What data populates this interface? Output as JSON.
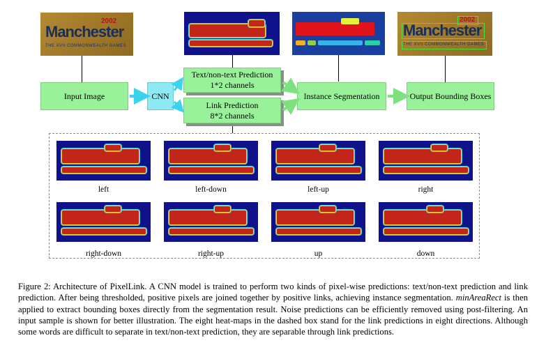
{
  "photo_text": {
    "year": "2002",
    "city": "Manchester",
    "subtitle": "THE XVII COMMONWEALTH GAMES"
  },
  "boxes": {
    "input_image": "Input Image",
    "cnn": "CNN",
    "text_pred": {
      "line1": "Text/non-text Prediction",
      "line2": "1*2 channels"
    },
    "link_pred": {
      "line1": "Link Prediction",
      "line2": "8*2 channels"
    },
    "instance_seg": "Instance Segmentation",
    "output_boxes": "Output Bounding Boxes"
  },
  "heatmaps": [
    {
      "label": "left"
    },
    {
      "label": "left-down"
    },
    {
      "label": "left-up"
    },
    {
      "label": "right"
    },
    {
      "label": "right-down"
    },
    {
      "label": "right-up"
    },
    {
      "label": "up"
    },
    {
      "label": "down"
    }
  ],
  "caption": {
    "prefix": "Figure 2: Architecture of PixelLink. A CNN model is trained to perform two kinds of pixel-wise predictions: text/non-text prediction and link prediction. After being thresholded, positive pixels are joined together by positive links, achieving instance segmentation. ",
    "emph": "minAreaRect",
    "suffix": " is then applied to extract bounding boxes directly from the segmentation result. Noise predictions can be efficiently removed using post-filtering. An input sample is shown for better illustration. The eight heat-maps in the dashed box stand for the link predictions in eight directions. Although some words are difficult to separate in text/non-text prediction, they are separable through link predictions."
  },
  "colors": {
    "box_green": "#99f299",
    "cnn_cyan": "#8fe9f3",
    "arrow_cyan": "#39d3ee",
    "arrow_green": "#7de27d",
    "heat_bg": "#10128c",
    "heat_fg": "#c2261a"
  }
}
